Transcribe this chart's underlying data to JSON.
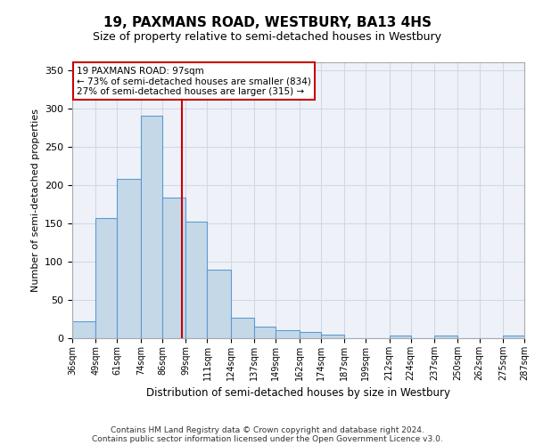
{
  "title": "19, PAXMANS ROAD, WESTBURY, BA13 4HS",
  "subtitle": "Size of property relative to semi-detached houses in Westbury",
  "xlabel": "Distribution of semi-detached houses by size in Westbury",
  "ylabel": "Number of semi-detached properties",
  "footnote1": "Contains HM Land Registry data © Crown copyright and database right 2024.",
  "footnote2": "Contains public sector information licensed under the Open Government Licence v3.0.",
  "annotation_line1": "19 PAXMANS ROAD: 97sqm",
  "annotation_line2": "← 73% of semi-detached houses are smaller (834)",
  "annotation_line3": "27% of semi-detached houses are larger (315) →",
  "property_size": 97,
  "bin_edges": [
    36,
    49,
    61,
    74,
    86,
    99,
    111,
    124,
    137,
    149,
    162,
    174,
    187,
    199,
    212,
    224,
    237,
    250,
    262,
    275,
    287
  ],
  "bar_heights": [
    22,
    157,
    208,
    290,
    183,
    152,
    90,
    27,
    15,
    10,
    8,
    5,
    0,
    0,
    3,
    0,
    3,
    0,
    0,
    3
  ],
  "bar_color": "#c5d8e8",
  "bar_edge_color": "#5b9bd5",
  "vline_color": "#cc0000",
  "grid_color": "#d0d8e8",
  "background_color": "#eef2f8",
  "annotation_box_color": "#cc0000",
  "ylim": [
    0,
    360
  ],
  "yticks": [
    0,
    50,
    100,
    150,
    200,
    250,
    300,
    350
  ]
}
